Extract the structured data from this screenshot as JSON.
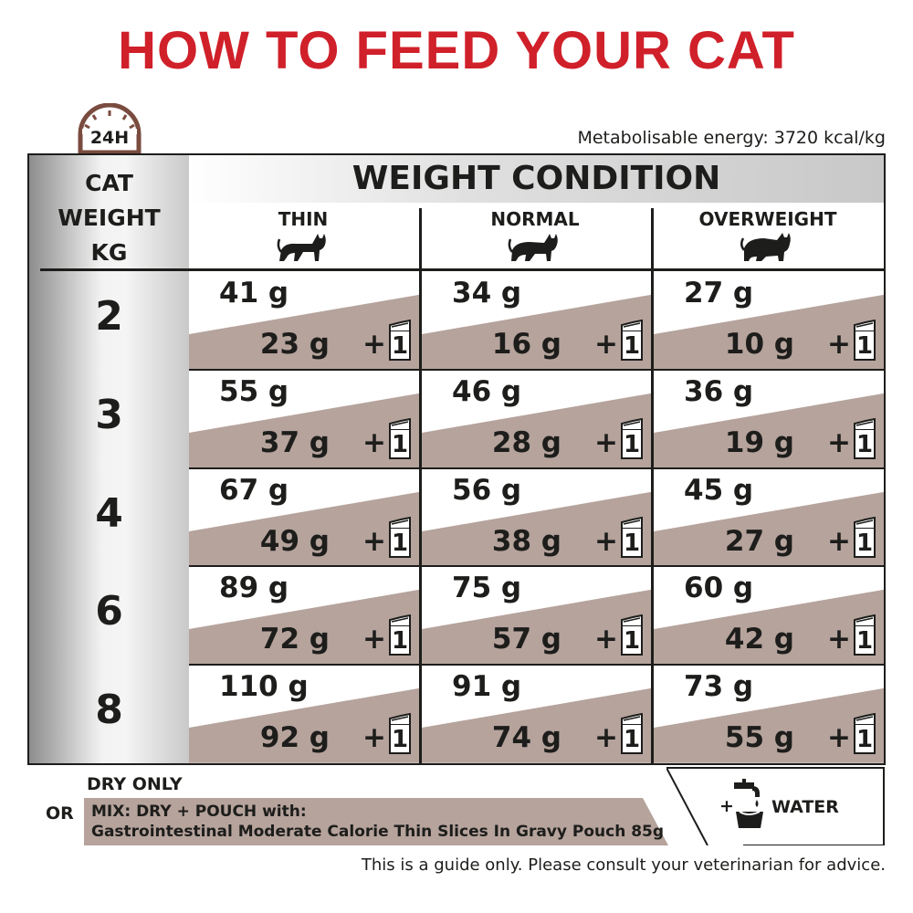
{
  "title": "HOW TO FEED YOUR CAT",
  "clock_label": "24H",
  "energy": "Metabolisable energy: 3720 kcal/kg",
  "table": {
    "weight_header": [
      "CAT",
      "WEIGHT",
      "KG"
    ],
    "condition_title": "WEIGHT CONDITION",
    "columns": [
      "THIN",
      "NORMAL",
      "OVERWEIGHT"
    ],
    "pouch_count": "1",
    "rows": [
      {
        "kg": "2",
        "cells": [
          {
            "dry": "41 g",
            "mix": "23 g"
          },
          {
            "dry": "34 g",
            "mix": "16 g"
          },
          {
            "dry": "27 g",
            "mix": "10 g"
          }
        ]
      },
      {
        "kg": "3",
        "cells": [
          {
            "dry": "55 g",
            "mix": "37 g"
          },
          {
            "dry": "46 g",
            "mix": "28 g"
          },
          {
            "dry": "36 g",
            "mix": "19 g"
          }
        ]
      },
      {
        "kg": "4",
        "cells": [
          {
            "dry": "67 g",
            "mix": "49 g"
          },
          {
            "dry": "56 g",
            "mix": "38 g"
          },
          {
            "dry": "45 g",
            "mix": "27 g"
          }
        ]
      },
      {
        "kg": "6",
        "cells": [
          {
            "dry": "89 g",
            "mix": "72 g"
          },
          {
            "dry": "75 g",
            "mix": "57 g"
          },
          {
            "dry": "60 g",
            "mix": "42 g"
          }
        ]
      },
      {
        "kg": "8",
        "cells": [
          {
            "dry": "110 g",
            "mix": "92 g"
          },
          {
            "dry": "91 g",
            "mix": "74 g"
          },
          {
            "dry": "73 g",
            "mix": "55 g"
          }
        ]
      }
    ]
  },
  "legend": {
    "dry_only": "DRY ONLY",
    "or": "OR",
    "mix_line1": "MIX: DRY + POUCH with:",
    "mix_line2": "Gastrointestinal Moderate Calorie Thin Slices In Gravy Pouch 85g",
    "water": "WATER",
    "plus": "+"
  },
  "disclaimer": "This is a guide only. Please consult your veterinarian for advice.",
  "colors": {
    "title_red": "#d0202a",
    "band_taupe": "#b5a39c",
    "clock_brown": "#7a4b3f",
    "ink": "#1d1d1b"
  }
}
